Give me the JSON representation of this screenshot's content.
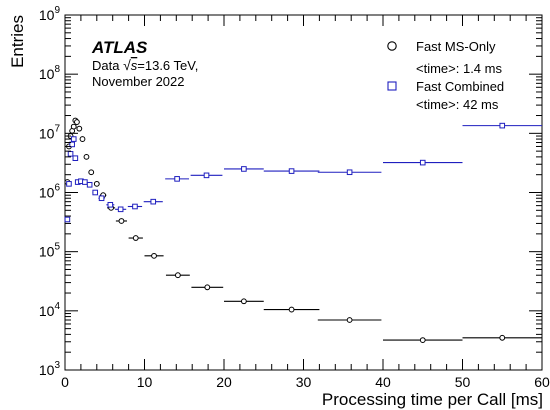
{
  "chart_data": {
    "type": "scatter",
    "title": "",
    "xlabel": "Processing time per Call [ms]",
    "ylabel": "Entries",
    "xlim": [
      0,
      60
    ],
    "ylim": [
      1000,
      1000000000
    ],
    "yscale": "log",
    "grid": false,
    "legend_position": "top-right",
    "x_ticks": [
      "0",
      "10",
      "20",
      "30",
      "40",
      "50",
      "60"
    ],
    "y_ticks": [
      {
        "base": "10",
        "exp": "3"
      },
      {
        "base": "10",
        "exp": "4"
      },
      {
        "base": "10",
        "exp": "5"
      },
      {
        "base": "10",
        "exp": "6"
      },
      {
        "base": "10",
        "exp": "7"
      },
      {
        "base": "10",
        "exp": "8"
      },
      {
        "base": "10",
        "exp": "9"
      }
    ],
    "annotation": {
      "experiment": "ATLAS",
      "line1_prefix": "Data ",
      "line1_sqrt": "s",
      "line1_suffix": "=13.6 TeV,",
      "line2": "November 2022"
    },
    "series": [
      {
        "name": "Fast MS-Only",
        "note": "<time>: 1.4 ms",
        "marker": "circle",
        "color": "#000000",
        "points": [
          {
            "x": 0.3,
            "xerr": 0.1,
            "y": 1500000
          },
          {
            "x": 0.5,
            "xerr": 0.1,
            "y": 6000000
          },
          {
            "x": 0.7,
            "xerr": 0.1,
            "y": 9000000
          },
          {
            "x": 0.9,
            "xerr": 0.1,
            "y": 11000000
          },
          {
            "x": 1.1,
            "xerr": 0.1,
            "y": 13000000
          },
          {
            "x": 1.3,
            "xerr": 0.1,
            "y": 16500000
          },
          {
            "x": 1.5,
            "xerr": 0.1,
            "y": 15500000
          },
          {
            "x": 1.8,
            "xerr": 0.15,
            "y": 12000000
          },
          {
            "x": 2.2,
            "xerr": 0.2,
            "y": 8000000
          },
          {
            "x": 2.7,
            "xerr": 0.25,
            "y": 4000000
          },
          {
            "x": 3.3,
            "xerr": 0.3,
            "y": 2200000
          },
          {
            "x": 4.0,
            "xerr": 0.35,
            "y": 1400000
          },
          {
            "x": 4.8,
            "xerr": 0.4,
            "y": 900000
          },
          {
            "x": 5.8,
            "xerr": 0.5,
            "y": 550000
          },
          {
            "x": 7.1,
            "xerr": 0.7,
            "y": 330000
          },
          {
            "x": 8.9,
            "xerr": 0.9,
            "y": 170000
          },
          {
            "x": 11.2,
            "xerr": 1.2,
            "y": 85000
          },
          {
            "x": 14.2,
            "xerr": 1.5,
            "y": 40000
          },
          {
            "x": 17.9,
            "xerr": 2.0,
            "y": 25000
          },
          {
            "x": 22.5,
            "xerr": 2.5,
            "y": 14500
          },
          {
            "x": 28.5,
            "xerr": 3.5,
            "y": 10500
          },
          {
            "x": 35.8,
            "xerr": 4.0,
            "y": 7000
          },
          {
            "x": 45.0,
            "xerr": 5.0,
            "y": 3200
          },
          {
            "x": 55.0,
            "xerr": 5.0,
            "y": 3500
          }
        ]
      },
      {
        "name": "Fast Combined",
        "note": "<time>: 42 ms",
        "marker": "square",
        "color": "#1f1fbf",
        "points": [
          {
            "x": 0.3,
            "xerr": 0.1,
            "y": 350000
          },
          {
            "x": 0.5,
            "xerr": 0.1,
            "y": 1400000
          },
          {
            "x": 0.7,
            "xerr": 0.1,
            "y": 4500000
          },
          {
            "x": 0.9,
            "xerr": 0.1,
            "y": 6500000
          },
          {
            "x": 1.1,
            "xerr": 0.1,
            "y": 8000000
          },
          {
            "x": 1.3,
            "xerr": 0.1,
            "y": 3800000
          },
          {
            "x": 1.6,
            "xerr": 0.15,
            "y": 1500000
          },
          {
            "x": 2.0,
            "xerr": 0.2,
            "y": 1550000
          },
          {
            "x": 2.5,
            "xerr": 0.25,
            "y": 1500000
          },
          {
            "x": 3.1,
            "xerr": 0.3,
            "y": 1350000
          },
          {
            "x": 3.8,
            "xerr": 0.35,
            "y": 1000000
          },
          {
            "x": 4.6,
            "xerr": 0.4,
            "y": 800000
          },
          {
            "x": 5.7,
            "xerr": 0.5,
            "y": 620000
          },
          {
            "x": 7.0,
            "xerr": 0.7,
            "y": 520000
          },
          {
            "x": 8.8,
            "xerr": 0.9,
            "y": 580000
          },
          {
            "x": 11.1,
            "xerr": 1.2,
            "y": 700000
          },
          {
            "x": 14.1,
            "xerr": 1.5,
            "y": 1700000
          },
          {
            "x": 17.8,
            "xerr": 2.0,
            "y": 1950000
          },
          {
            "x": 22.5,
            "xerr": 2.5,
            "y": 2500000
          },
          {
            "x": 28.5,
            "xerr": 3.5,
            "y": 2300000
          },
          {
            "x": 35.8,
            "xerr": 4.0,
            "y": 2200000
          },
          {
            "x": 45.0,
            "xerr": 5.0,
            "y": 3200000
          },
          {
            "x": 55.0,
            "xerr": 5.0,
            "y": 13500000
          }
        ]
      }
    ]
  }
}
